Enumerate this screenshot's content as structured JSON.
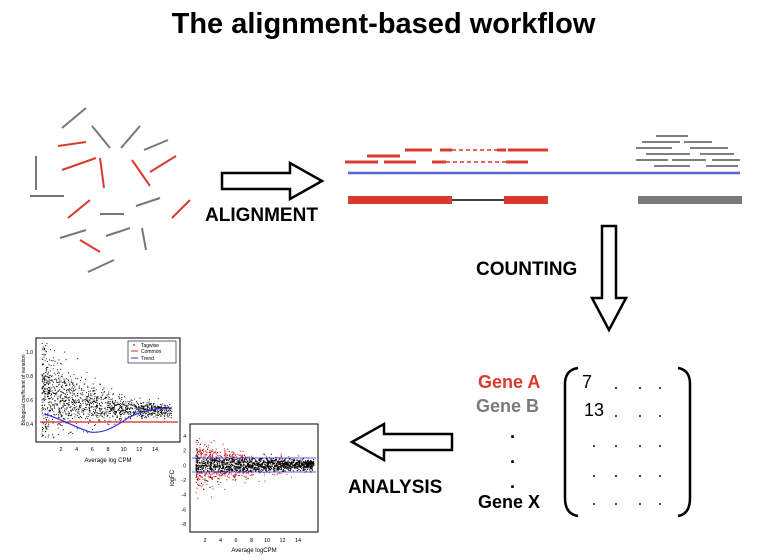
{
  "title": "The alignment-based workflow",
  "steps": {
    "alignment": "ALIGNMENT",
    "counting": "COUNTING",
    "analysis": "ANALYSIS"
  },
  "genes": [
    {
      "label": "Gene A",
      "color": "#d93a2b"
    },
    {
      "label": "Gene B",
      "color": "#7a7a7a"
    },
    {
      "label": "Gene X",
      "color": "#000000"
    }
  ],
  "ellipsis": ".",
  "counts": [
    "7",
    "13"
  ],
  "colors": {
    "red": "#d93a2b",
    "grey": "#7a7a7a",
    "blue": "#5566cc"
  },
  "plot1": {
    "xlabel": "Average log CPM",
    "ylabel": "Biological coefficient of variation",
    "xticks": [
      "2",
      "4",
      "6",
      "8",
      "10",
      "12",
      "14"
    ],
    "yticks": [
      "0.4",
      "0.6",
      "0.8",
      "1.0"
    ],
    "legend": [
      "Tagwise",
      "Common",
      "Trend"
    ]
  },
  "plot2": {
    "xlabel": "Average logCPM",
    "ylabel": "logFC",
    "xticks": [
      "2",
      "4",
      "6",
      "8",
      "10",
      "12",
      "14"
    ],
    "yticks": [
      "4",
      "2",
      "0",
      "-2",
      "-4",
      "-6",
      "-8"
    ]
  }
}
